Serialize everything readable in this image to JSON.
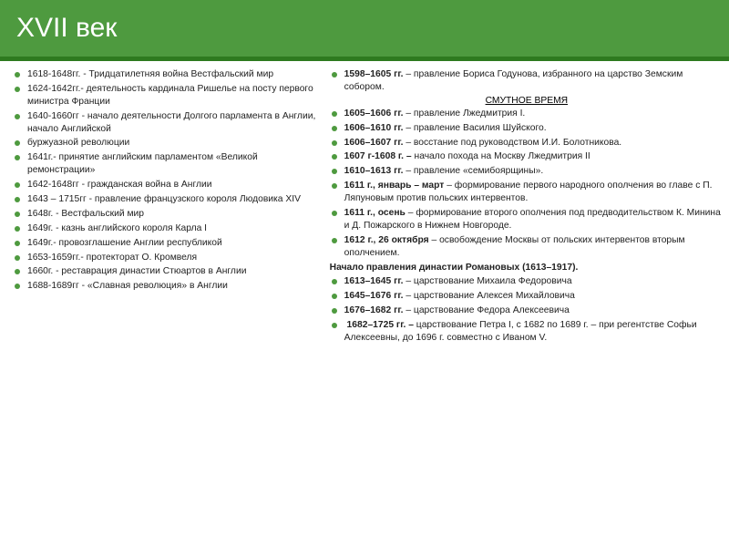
{
  "accent_color": "#4e9a3f",
  "title": "XVII век",
  "left_items": [
    "1618-1648гг. - Тридцатилетняя война Вестфальский мир",
    "1624-1642гг.- деятельность кардинала Ришелье на посту первого министра Франции",
    "1640-1660гг - начало деятельности Долгого парламента в Англии, начало Английской",
    "буржуазной революции",
    "1641г.- принятие английским парламентом «Великой ремонстрации»",
    "1642-1648гг - гражданская война в Англии",
    "1643 – 1715гг - правление французского короля Людовика XIV",
    "1648г. - Вестфальский мир",
    "1649г. - казнь английского короля Карла I",
    "1649г.- провозглашение Англии республикой",
    "1653-1659гг.- протекторат О. Кромвеля",
    "1660г. - реставрация династии Стюартов в Англии",
    "1688-1689гг - «Славная революция» в Англии"
  ],
  "right": {
    "intro": "<b>1598–1605 гг.</b> – правление Бориса Годунова, избранного на царство Земским собором.",
    "section_title": "СМУТНОЕ ВРЕМЯ",
    "smuta": [
      "<b>1605–1606 гг.</b> – правление Лжедмитрия I.",
      "<b>1606–1610 гг.</b> – правление Василия Шуйского.",
      "<b>1606–1607 гг.</b> – восстание под руководством И.И. Болотникова.",
      "<b>1607 г-1608 г. –</b> начало похода на Москву Лжедмитрия II",
      "<b>1610–1613 гг.</b> – правление «семибоярщины».",
      "<b>1611 г., январь – март</b> – формирование первого народного ополчения во главе с П. Ляпуновым против польских интервентов.",
      "<b>1611 г., осень</b> – формирование второго ополчения под предводительством К. Минина и Д. Пожарского в Нижнем Новгороде.",
      "<b>1612 г., 26 октября</b> – освобождение Москвы от польских интервентов вторым ополчением."
    ],
    "romanov_head": "Начало правления династии Романовых (1613–1917).",
    "romanov": [
      "<b>1613–1645 гг.</b> – царствование Михаила Федоровича",
      "<b>1645–1676 гг.</b> – царствование Алексея Михайловича",
      "<b>1676–1682 гг.</b> – царствование Федора Алексеевича",
      "<b>&nbsp;1682–1725 гг. –</b> царствование Петра I, с 1682 по 1689 г. – при регентстве Софьи Алексеевны, до 1696 г. совместно с Иваном V."
    ]
  }
}
